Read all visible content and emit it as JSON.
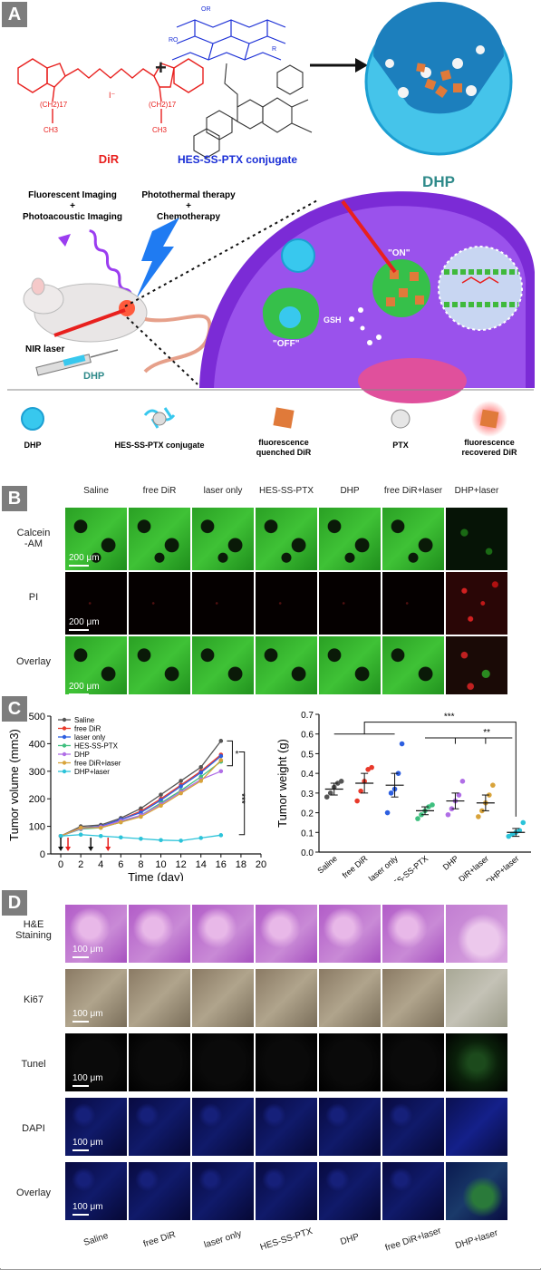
{
  "panelA": {
    "label": "A",
    "dir_label": "DiR",
    "conjugate_label": "HES-SS-PTX conjugate",
    "chem_text": {
      "ch2": "(CH2)17",
      "ch3": "CH3",
      "iodide": "I⁻",
      "r": "R",
      "ro": "RO",
      "or": "OR"
    },
    "dhp_label": "DHP",
    "imaging_label_1": "Fluorescent Imaging",
    "plus_1": "+",
    "imaging_label_2": "Photoacoustic Imaging",
    "therapy_label_1": "Photothermal therapy",
    "plus_2": "+",
    "therapy_label_2": "Chemotherapy",
    "nir_label": "NIR laser",
    "dhp_syringe_label": "DHP",
    "on_label": "\"ON\"",
    "off_label": "\"OFF\"",
    "gsh_label": "GSH",
    "legend": [
      {
        "name": "dhp",
        "label": "DHP"
      },
      {
        "name": "conjugate",
        "label": "HES-SS-PTX conjugate"
      },
      {
        "name": "quenched",
        "label": "fluorescence\nquenched DiR"
      },
      {
        "name": "ptx",
        "label": "PTX"
      },
      {
        "name": "recovered",
        "label": "fluorescence\nrecovered DiR"
      }
    ],
    "colors": {
      "dhp_cyan": "#38c8ee",
      "dir_red": "#e8201e",
      "hes_blue": "#1b2fd6",
      "cell_purple": "#7b2bd6",
      "drug_orange": "#e07a3a",
      "green": "#3fb93c"
    }
  },
  "panelB": {
    "label": "B",
    "columns": [
      "Saline",
      "free DiR",
      "laser only",
      "HES-SS-PTX",
      "DHP",
      "free DiR+laser",
      "DHP+laser"
    ],
    "rows": [
      "Calcein\n-AM",
      "PI",
      "Overlay"
    ],
    "scale": "200 μm"
  },
  "panelC": {
    "label": "C"
  },
  "panelD": {
    "label": "D",
    "rows": [
      "H&E\nStaining",
      "Ki67",
      "Tunel",
      "DAPI",
      "Overlay"
    ],
    "scale": "100 μm",
    "columns": [
      "Saline",
      "free DiR",
      "laser only",
      "HES-SS-PTX",
      "DHP",
      "free DiR+laser",
      "DHP+laser"
    ]
  },
  "chart_data": [
    {
      "type": "line",
      "xlabel": "Time (day)",
      "ylabel": "Tumor volume (mm3)",
      "xlim": [
        -1,
        20
      ],
      "ylim": [
        0,
        500
      ],
      "xticks": [
        0,
        2,
        4,
        6,
        8,
        10,
        12,
        14,
        16,
        18,
        20
      ],
      "yticks": [
        0,
        100,
        200,
        300,
        400,
        500
      ],
      "x": [
        0,
        2,
        4,
        6,
        8,
        10,
        12,
        14,
        16
      ],
      "series": [
        {
          "name": "Saline",
          "color": "#555555",
          "marker": "square",
          "values": [
            65,
            100,
            105,
            130,
            165,
            215,
            265,
            315,
            410
          ]
        },
        {
          "name": "free DiR",
          "color": "#e8392a",
          "marker": "circle",
          "values": [
            65,
            95,
            100,
            125,
            155,
            200,
            250,
            300,
            360
          ]
        },
        {
          "name": "laser only",
          "color": "#2d5fe0",
          "marker": "triangle-up",
          "values": [
            65,
            95,
            100,
            125,
            150,
            195,
            245,
            295,
            355
          ]
        },
        {
          "name": "HES-SS-PTX",
          "color": "#3fbf7f",
          "marker": "triangle-down",
          "values": [
            65,
            90,
            95,
            115,
            140,
            185,
            230,
            280,
            335
          ]
        },
        {
          "name": "DHP",
          "color": "#b06ee6",
          "marker": "diamond",
          "values": [
            65,
            92,
            98,
            120,
            140,
            180,
            225,
            270,
            300
          ]
        },
        {
          "name": "free DiR+laser",
          "color": "#d8a33a",
          "marker": "triangle-left",
          "values": [
            65,
            95,
            95,
            115,
            135,
            175,
            220,
            265,
            340
          ]
        },
        {
          "name": "DHP+laser",
          "color": "#2bc3d9",
          "marker": "triangle-right",
          "values": [
            65,
            70,
            65,
            60,
            55,
            50,
            48,
            58,
            68
          ]
        }
      ],
      "laser_arrows_days": [
        0,
        4
      ],
      "injection_arrows_days": [
        0,
        3
      ],
      "significance": [
        "*",
        "***"
      ]
    },
    {
      "type": "scatter",
      "xlabel": "",
      "ylabel": "Tumor weight (g)",
      "ylim": [
        0,
        0.7
      ],
      "yticks": [
        0.0,
        0.1,
        0.2,
        0.3,
        0.4,
        0.5,
        0.6,
        0.7
      ],
      "categories": [
        "Saline",
        "free DiR",
        "laser only",
        "HES-SS-PTX",
        "DHP",
        "free DiR+laser",
        "DHP+laser"
      ],
      "colors": [
        "#555555",
        "#e8392a",
        "#2d5fe0",
        "#3fbf7f",
        "#b06ee6",
        "#d8a33a",
        "#2bc3d9"
      ],
      "means": [
        0.32,
        0.35,
        0.34,
        0.21,
        0.26,
        0.25,
        0.1
      ],
      "sem": [
        0.03,
        0.05,
        0.06,
        0.02,
        0.04,
        0.04,
        0.02
      ],
      "points": [
        [
          0.28,
          0.3,
          0.33,
          0.35,
          0.36
        ],
        [
          0.26,
          0.31,
          0.36,
          0.42,
          0.43
        ],
        [
          0.2,
          0.3,
          0.32,
          0.4,
          0.55
        ],
        [
          0.17,
          0.19,
          0.21,
          0.23,
          0.24
        ],
        [
          0.19,
          0.22,
          0.26,
          0.29,
          0.36
        ],
        [
          0.18,
          0.21,
          0.25,
          0.29,
          0.34
        ],
        [
          0.08,
          0.09,
          0.1,
          0.11,
          0.15
        ]
      ],
      "significance": [
        "***",
        "**"
      ]
    }
  ]
}
